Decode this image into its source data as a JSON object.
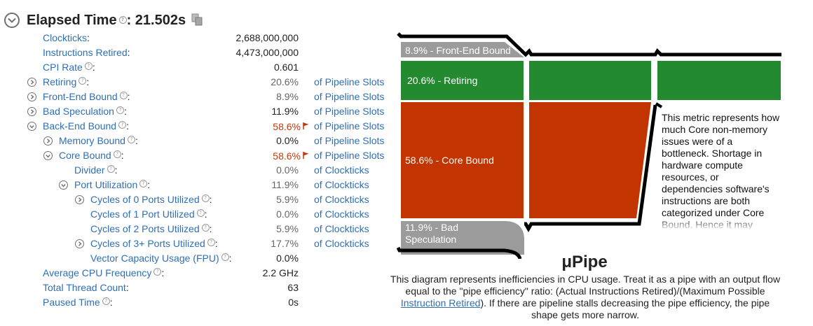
{
  "header": {
    "title": "Elapsed Time",
    "value": ": 21.502s"
  },
  "metrics": [
    {
      "label": "Clockticks",
      "value": "2,688,000,000",
      "unit": ""
    },
    {
      "label": "Instructions Retired",
      "value": "4,473,000,000",
      "unit": ""
    },
    {
      "label": "CPI Rate",
      "value": "0.601",
      "unit": ""
    },
    {
      "label": "Retiring",
      "value": "20.6%",
      "unit": "of Pipeline Slots"
    },
    {
      "label": "Front-End Bound",
      "value": "8.9%",
      "unit": "of Pipeline Slots"
    },
    {
      "label": "Bad Speculation",
      "value": "11.9%",
      "unit": "of Pipeline Slots"
    },
    {
      "label": "Back-End Bound",
      "value": "58.6%",
      "unit": "of Pipeline Slots"
    },
    {
      "label": "Memory Bound",
      "value": "0.0%",
      "unit": "of Pipeline Slots"
    },
    {
      "label": "Core Bound",
      "value": "58.6%",
      "unit": "of Pipeline Slots"
    },
    {
      "label": "Divider",
      "value": "0.0%",
      "unit": "of Clockticks"
    },
    {
      "label": "Port Utilization",
      "value": "11.9%",
      "unit": "of Clockticks"
    },
    {
      "label": "Cycles of 0 Ports Utilized",
      "value": "5.9%",
      "unit": "of Clockticks"
    },
    {
      "label": "Cycles of 1 Port Utilized",
      "value": "0.0%",
      "unit": "of Clockticks"
    },
    {
      "label": "Cycles of 2 Ports Utilized",
      "value": "5.9%",
      "unit": "of Clockticks"
    },
    {
      "label": "Cycles of 3+ Ports Utilized",
      "value": "17.7%",
      "unit": "of Clockticks"
    },
    {
      "label": "Vector Capacity Usage (FPU)",
      "value": "0.0%",
      "unit": ""
    },
    {
      "label": "Average CPU Frequency",
      "value": "2.2 GHz",
      "unit": ""
    },
    {
      "label": "Total Thread Count",
      "value": "63",
      "unit": ""
    },
    {
      "label": "Paused Time",
      "value": "0s",
      "unit": ""
    }
  ],
  "pipe": {
    "front_end": "8.9% - Front-End Bound",
    "retiring": "20.6% - Retiring",
    "core_bound": "58.6% - Core Bound",
    "bad_spec_1": "11.9% - Bad",
    "bad_spec_2": "Speculation",
    "colors": {
      "retiring": "#238a30",
      "core_bound": "#c23400",
      "grey": "#9b9b9b"
    }
  },
  "tooltip": {
    "text": "This metric represents how much Core non-memory issues were of a bottleneck. Shortage in hardware compute resources, or dependencies software's instructions are both categorized under Core Bound. Hence it may"
  },
  "upipe": {
    "title": "μPipe",
    "desc_before": "This diagram represents inefficiencies in CPU usage. Treat it as a pipe with an output flow equal to the \"pipe efficiency\" ratio: (Actual Instructions Retired)/(Maximum Possible ",
    "link": "Instruction Retired",
    "desc_after": "). If there are pipeline stalls decreasing the pipe efficiency, the pipe shape gets more narrow."
  }
}
